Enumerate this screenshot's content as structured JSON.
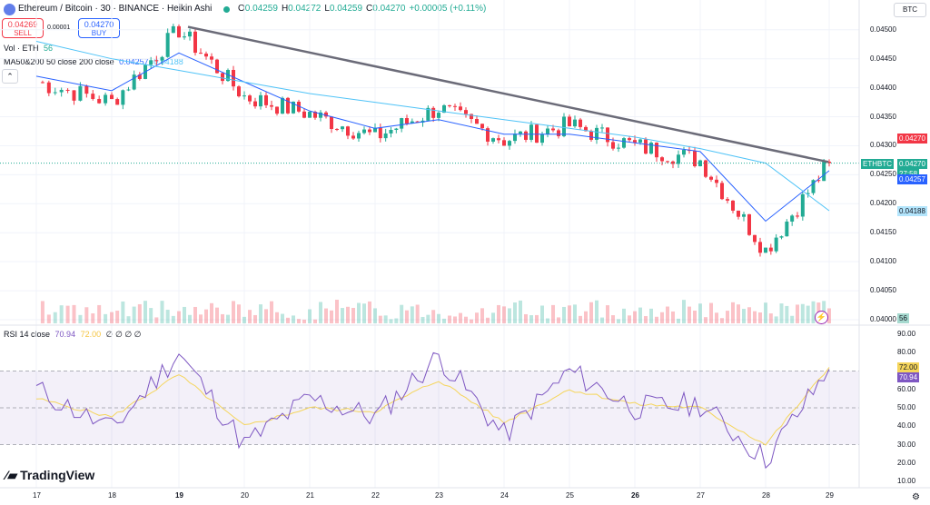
{
  "header": {
    "title": "Ethereum / Bitcoin · 30 · BINANCE · Heikin Ashi",
    "ohlc": [
      {
        "k": "O",
        "v": "0.04259"
      },
      {
        "k": "H",
        "v": "0.04272"
      },
      {
        "k": "L",
        "v": "0.04259"
      },
      {
        "k": "C",
        "v": "0.04270"
      },
      {
        "k": "",
        "v": "+0.00005 (+0.11%)"
      }
    ],
    "currency_button": "BTC"
  },
  "trade": {
    "sell_price": "0.04269",
    "sell_label": "SELL",
    "spread": "0.00001",
    "buy_price": "0.04270",
    "buy_label": "BUY"
  },
  "indicators": {
    "vol_label": "Vol · ETH",
    "vol_value": "56",
    "ma_label": "MA50&200 50 close 200 close",
    "ma50_value": "0.04257",
    "ma200_value": "0.04188",
    "rsi_label": "RSI 14 close",
    "rsi_value": "70.94",
    "rsi_ma_value": "72.00",
    "rsi_glyphs": "∅ ∅ ∅ ∅"
  },
  "price_axis": {
    "ticks": [
      "0.04500",
      "0.04450",
      "0.04400",
      "0.04350",
      "0.04300",
      "0.04250",
      "0.04200",
      "0.04150",
      "0.04100",
      "0.04050",
      "0.04000"
    ],
    "tags": {
      "last_price": "0.04270",
      "symbol": "ETHBTC",
      "current": "0.04270",
      "countdown": "27:58",
      "ma50": "0.04257",
      "ma200": "0.04188",
      "volume": "56"
    }
  },
  "rsi_axis": {
    "ticks": [
      "90.00",
      "80.00",
      "70.00",
      "60.00",
      "50.00",
      "40.00",
      "30.00",
      "20.00",
      "10.00"
    ],
    "tag_ma": "72.00",
    "tag_rsi": "70.94"
  },
  "time_axis": {
    "labels": [
      "17",
      "18",
      "19",
      "20",
      "21",
      "22",
      "23",
      "24",
      "25",
      "26",
      "27",
      "28",
      "29"
    ]
  },
  "branding": {
    "text": "TradingView"
  },
  "colors": {
    "up": "#22ab94",
    "down": "#f23645",
    "ma50": "#2962ff",
    "ma200": "#4fc3f7",
    "trendline": "#6b6b78",
    "rsi": "#7e57c2",
    "rsi_ma": "#f5d55b"
  },
  "chart_data": {
    "type": "line",
    "title": "Ethereum / Bitcoin · 30 · BINANCE · Heikin Ashi",
    "x": [
      "17",
      "18",
      "19",
      "20",
      "21",
      "22",
      "23",
      "24",
      "25",
      "26",
      "27",
      "28",
      "29"
    ],
    "ylim": [
      0.04,
      0.0452
    ],
    "series": [
      {
        "name": "ETHBTC",
        "values": [
          0.0441,
          0.04375,
          0.045,
          0.04385,
          0.04355,
          0.04315,
          0.04365,
          0.0431,
          0.04335,
          0.043,
          0.04275,
          0.0412,
          0.0427
        ]
      },
      {
        "name": "MA50",
        "values": [
          0.0442,
          0.04395,
          0.0446,
          0.0441,
          0.0436,
          0.0433,
          0.04345,
          0.0432,
          0.0432,
          0.04305,
          0.0429,
          0.0417,
          0.04257
        ]
      },
      {
        "name": "MA200",
        "values": [
          0.0448,
          0.0445,
          0.0443,
          0.0441,
          0.0439,
          0.04375,
          0.0436,
          0.04345,
          0.0433,
          0.04315,
          0.04295,
          0.0427,
          0.04188
        ]
      }
    ],
    "rsi": {
      "ylim": [
        10,
        90
      ],
      "values": [
        60,
        38,
        80,
        30,
        55,
        45,
        78,
        35,
        70,
        50,
        52,
        22,
        71
      ],
      "ma": [
        55,
        45,
        68,
        40,
        50,
        48,
        65,
        42,
        60,
        52,
        50,
        30,
        72
      ],
      "bands": [
        30,
        50,
        70
      ]
    }
  }
}
